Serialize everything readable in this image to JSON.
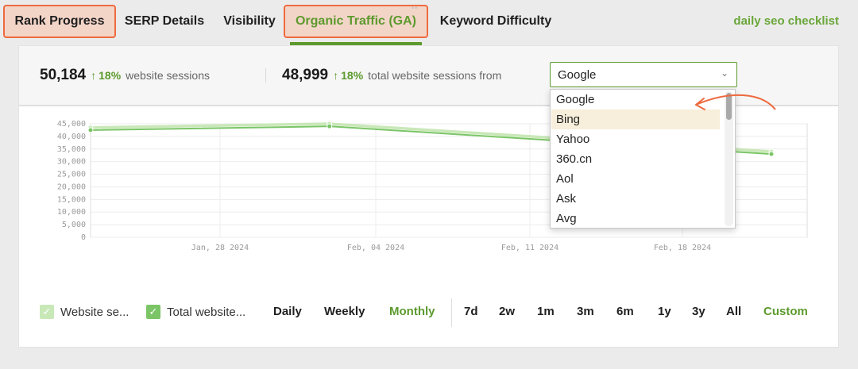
{
  "tabs": [
    {
      "label": "Rank Progress",
      "state": "highlighted"
    },
    {
      "label": "SERP Details",
      "state": "normal"
    },
    {
      "label": "Visibility",
      "state": "normal"
    },
    {
      "label": "Organic Traffic (GA)",
      "state": "active-highlighted"
    },
    {
      "label": "Keyword Difficulty",
      "state": "normal"
    }
  ],
  "checklist_link": "daily seo checklist",
  "stats": {
    "sessions": {
      "value": "50,184",
      "arrow": "↑",
      "change": "18%",
      "label": "website sessions"
    },
    "total": {
      "value": "48,999",
      "arrow": "↑",
      "change": "18%",
      "label": "total website sessions from"
    }
  },
  "source_select": {
    "value": "Google",
    "options": [
      "Google",
      "Bing",
      "Yahoo",
      "360.cn",
      "Aol",
      "Ask",
      "Avg"
    ],
    "highlighted": "Bing"
  },
  "legend": [
    {
      "label": "Website se...",
      "checked": true
    },
    {
      "label": "Total website...",
      "checked": true
    }
  ],
  "granularity": [
    {
      "label": "Daily",
      "active": false
    },
    {
      "label": "Weekly",
      "active": false
    },
    {
      "label": "Monthly",
      "active": true
    }
  ],
  "ranges": [
    {
      "label": "7d",
      "active": false
    },
    {
      "label": "2w",
      "active": false
    },
    {
      "label": "1m",
      "active": false
    },
    {
      "label": "3m",
      "active": false
    },
    {
      "label": "6m",
      "active": false
    },
    {
      "label": "1y",
      "active": false
    },
    {
      "label": "3y",
      "active": false
    },
    {
      "label": "All",
      "active": false
    },
    {
      "label": "Custom",
      "active": true
    }
  ],
  "colors": {
    "accent": "#5d9a2e",
    "highlight_border": "#ee6a3f",
    "highlight_fill": "#f3d5c8",
    "series_light": "#c9e8b8",
    "series_dark": "#7bc567"
  },
  "chart_data": {
    "type": "line",
    "x_ticks": [
      "Jan, 28 2024",
      "Feb, 04 2024",
      "Feb, 11 2024",
      "Feb, 18 2024"
    ],
    "y_ticks": [
      "45,000",
      "40,000",
      "35,000",
      "30,000",
      "25,000",
      "20,000",
      "15,000",
      "10,000",
      "5,000",
      "0"
    ],
    "ylim": [
      0,
      45000
    ],
    "x": [
      "2024-01-20",
      "2024-02-01",
      "2024-02-25"
    ],
    "series": [
      {
        "values": [
          43500,
          45000,
          34000
        ]
      },
      {
        "values": [
          42500,
          44000,
          33000
        ]
      }
    ]
  }
}
